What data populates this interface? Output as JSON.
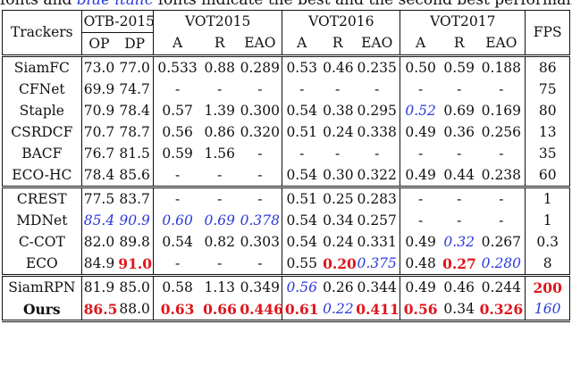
{
  "caption": {
    "prefix": "fonts and ",
    "italic": "blue italic",
    "suffix": " fonts indicate the best and the second best performance."
  },
  "header": {
    "trackers": "Trackers",
    "otb": "OTB-2015",
    "vot2015": "VOT2015",
    "vot2016": "VOT2016",
    "vot2017": "VOT2017",
    "fps": "FPS",
    "sub": [
      "OP",
      "DP",
      "A",
      "R",
      "EAO",
      "A",
      "R",
      "EAO",
      "A",
      "R",
      "EAO"
    ]
  },
  "groups": [
    [
      {
        "name": "SiamFC",
        "cells": [
          [
            "73.0",
            ""
          ],
          [
            "77.0",
            ""
          ],
          [
            "0.533",
            ""
          ],
          [
            "0.88",
            ""
          ],
          [
            "0.289",
            ""
          ],
          [
            "0.53",
            ""
          ],
          [
            "0.46",
            ""
          ],
          [
            "0.235",
            ""
          ],
          [
            "0.50",
            ""
          ],
          [
            "0.59",
            ""
          ],
          [
            "0.188",
            ""
          ],
          [
            "86",
            ""
          ]
        ]
      },
      {
        "name": "CFNet",
        "cells": [
          [
            "69.9",
            ""
          ],
          [
            "74.7",
            ""
          ],
          [
            "-",
            ""
          ],
          [
            "-",
            ""
          ],
          [
            "-",
            ""
          ],
          [
            "-",
            ""
          ],
          [
            "-",
            ""
          ],
          [
            "-",
            ""
          ],
          [
            "-",
            ""
          ],
          [
            "-",
            ""
          ],
          [
            "-",
            ""
          ],
          [
            "75",
            ""
          ]
        ]
      },
      {
        "name": "Staple",
        "cells": [
          [
            "70.9",
            ""
          ],
          [
            "78.4",
            ""
          ],
          [
            "0.57",
            ""
          ],
          [
            "1.39",
            ""
          ],
          [
            "0.300",
            ""
          ],
          [
            "0.54",
            ""
          ],
          [
            "0.38",
            ""
          ],
          [
            "0.295",
            ""
          ],
          [
            "0.52",
            "blue"
          ],
          [
            "0.69",
            ""
          ],
          [
            "0.169",
            ""
          ],
          [
            "80",
            ""
          ]
        ]
      },
      {
        "name": "CSRDCF",
        "cells": [
          [
            "70.7",
            ""
          ],
          [
            "78.7",
            ""
          ],
          [
            "0.56",
            ""
          ],
          [
            "0.86",
            ""
          ],
          [
            "0.320",
            ""
          ],
          [
            "0.51",
            ""
          ],
          [
            "0.24",
            ""
          ],
          [
            "0.338",
            ""
          ],
          [
            "0.49",
            ""
          ],
          [
            "0.36",
            ""
          ],
          [
            "0.256",
            ""
          ],
          [
            "13",
            ""
          ]
        ]
      },
      {
        "name": "BACF",
        "cells": [
          [
            "76.7",
            ""
          ],
          [
            "81.5",
            ""
          ],
          [
            "0.59",
            ""
          ],
          [
            "1.56",
            ""
          ],
          [
            "-",
            ""
          ],
          [
            "-",
            ""
          ],
          [
            "-",
            ""
          ],
          [
            "-",
            ""
          ],
          [
            "-",
            ""
          ],
          [
            "-",
            ""
          ],
          [
            "-",
            ""
          ],
          [
            "35",
            ""
          ]
        ]
      },
      {
        "name": "ECO-HC",
        "cells": [
          [
            "78.4",
            ""
          ],
          [
            "85.6",
            ""
          ],
          [
            "-",
            ""
          ],
          [
            "-",
            ""
          ],
          [
            "-",
            ""
          ],
          [
            "0.54",
            ""
          ],
          [
            "0.30",
            ""
          ],
          [
            "0.322",
            ""
          ],
          [
            "0.49",
            ""
          ],
          [
            "0.44",
            ""
          ],
          [
            "0.238",
            ""
          ],
          [
            "60",
            ""
          ]
        ]
      }
    ],
    [
      {
        "name": "CREST",
        "cells": [
          [
            "77.5",
            ""
          ],
          [
            "83.7",
            ""
          ],
          [
            "-",
            ""
          ],
          [
            "-",
            ""
          ],
          [
            "-",
            ""
          ],
          [
            "0.51",
            ""
          ],
          [
            "0.25",
            ""
          ],
          [
            "0.283",
            ""
          ],
          [
            "-",
            ""
          ],
          [
            "-",
            ""
          ],
          [
            "-",
            ""
          ],
          [
            "1",
            ""
          ]
        ]
      },
      {
        "name": "MDNet",
        "cells": [
          [
            "85.4",
            "blue"
          ],
          [
            "90.9",
            "blue"
          ],
          [
            "0.60",
            "blue"
          ],
          [
            "0.69",
            "blue"
          ],
          [
            "0.378",
            "blue"
          ],
          [
            "0.54",
            ""
          ],
          [
            "0.34",
            ""
          ],
          [
            "0.257",
            ""
          ],
          [
            "-",
            ""
          ],
          [
            "-",
            ""
          ],
          [
            "-",
            ""
          ],
          [
            "1",
            ""
          ]
        ]
      },
      {
        "name": "C-COT",
        "cells": [
          [
            "82.0",
            ""
          ],
          [
            "89.8",
            ""
          ],
          [
            "0.54",
            ""
          ],
          [
            "0.82",
            ""
          ],
          [
            "0.303",
            ""
          ],
          [
            "0.54",
            ""
          ],
          [
            "0.24",
            ""
          ],
          [
            "0.331",
            ""
          ],
          [
            "0.49",
            ""
          ],
          [
            "0.32",
            "blue"
          ],
          [
            "0.267",
            ""
          ],
          [
            "0.3",
            ""
          ]
        ]
      },
      {
        "name": "ECO",
        "cells": [
          [
            "84.9",
            ""
          ],
          [
            "91.0",
            "red"
          ],
          [
            "-",
            ""
          ],
          [
            "-",
            ""
          ],
          [
            "-",
            ""
          ],
          [
            "0.55",
            ""
          ],
          [
            "0.20",
            "red"
          ],
          [
            "0.375",
            "blue"
          ],
          [
            "0.48",
            ""
          ],
          [
            "0.27",
            "red"
          ],
          [
            "0.280",
            "blue"
          ],
          [
            "8",
            ""
          ]
        ]
      }
    ],
    [
      {
        "name": "SiamRPN",
        "cells": [
          [
            "81.9",
            ""
          ],
          [
            "85.0",
            ""
          ],
          [
            "0.58",
            ""
          ],
          [
            "1.13",
            ""
          ],
          [
            "0.349",
            ""
          ],
          [
            "0.56",
            "blue"
          ],
          [
            "0.26",
            ""
          ],
          [
            "0.344",
            ""
          ],
          [
            "0.49",
            ""
          ],
          [
            "0.46",
            ""
          ],
          [
            "0.244",
            ""
          ],
          [
            "200",
            "red"
          ]
        ]
      },
      {
        "name": "Ours",
        "nameStyle": "bold",
        "cells": [
          [
            "86.5",
            "red"
          ],
          [
            "88.0",
            ""
          ],
          [
            "0.63",
            "red"
          ],
          [
            "0.66",
            "red"
          ],
          [
            "0.446",
            "red"
          ],
          [
            "0.61",
            "red"
          ],
          [
            "0.22",
            "blue"
          ],
          [
            "0.411",
            "red"
          ],
          [
            "0.56",
            "red"
          ],
          [
            "0.34",
            ""
          ],
          [
            "0.326",
            "red"
          ],
          [
            "160",
            "blue"
          ]
        ]
      }
    ]
  ]
}
